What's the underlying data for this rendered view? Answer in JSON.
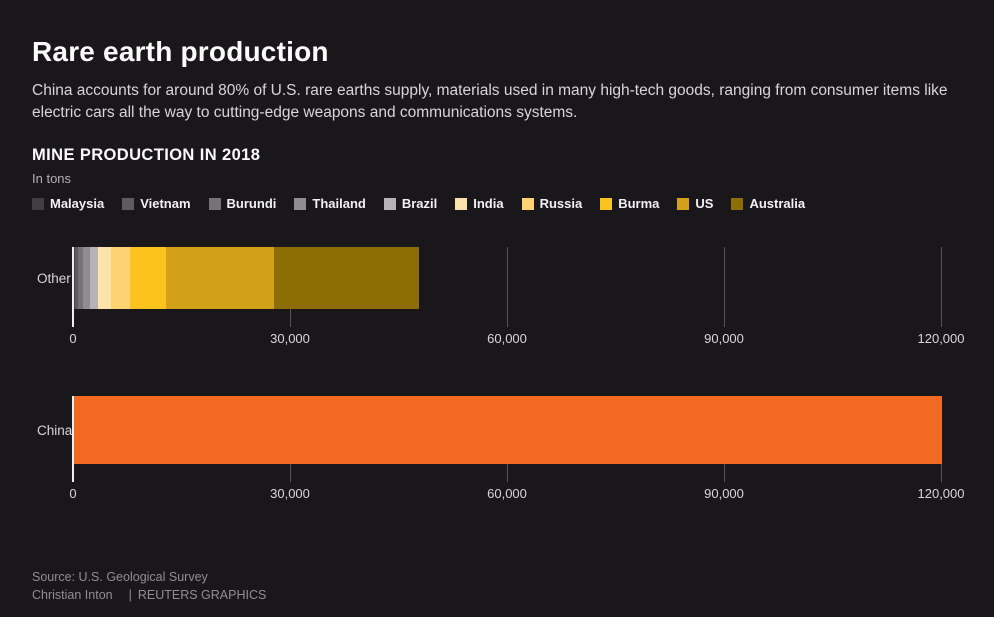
{
  "page": {
    "title": "Rare earth production",
    "subtitle": "China accounts for around 80% of U.S. rare earths supply, materials used in many high-tech goods, ranging from consumer items like electric cars all the way to cutting-edge weapons and communications systems.",
    "source": "Source: U.S. Geological Survey",
    "credit": "Christian Inton",
    "credit_separator": "|",
    "credit_org": "REUTERS GRAPHICS"
  },
  "colors": {
    "background": "#1a171b",
    "gridline": "#55525a",
    "zero_axis": "#efefef",
    "china_orange": "#f26a22",
    "text_primary": "#fdfdfd",
    "text_secondary": "#d9d6d9",
    "text_muted": "#918e92"
  },
  "chart_data": {
    "type": "bar",
    "orientation": "horizontal",
    "stacked": true,
    "title": "MINE PRODUCTION IN 2018",
    "units": "In tons",
    "xlabel": "",
    "ylabel": "",
    "xlim": [
      0,
      120000
    ],
    "x_ticks": [
      0,
      30000,
      60000,
      90000,
      120000
    ],
    "x_tick_labels": [
      "0",
      "30,000",
      "60,000",
      "90,000",
      "120,000"
    ],
    "grid": true,
    "legend_position": "top",
    "legend": [
      {
        "name": "Malaysia",
        "color": "#413e44"
      },
      {
        "name": "Vietnam",
        "color": "#5d5a61"
      },
      {
        "name": "Burundi",
        "color": "#757278"
      },
      {
        "name": "Thailand",
        "color": "#8f8c92"
      },
      {
        "name": "Brazil",
        "color": "#b5b3b6"
      },
      {
        "name": "India",
        "color": "#fce3a9"
      },
      {
        "name": "Russia",
        "color": "#fcd273"
      },
      {
        "name": "Burma",
        "color": "#fcc31d"
      },
      {
        "name": "US",
        "color": "#d2a117"
      },
      {
        "name": "Australia",
        "color": "#8d6e04"
      }
    ],
    "rows": [
      {
        "label": "Other",
        "segments": [
          {
            "name": "Malaysia",
            "value": 200,
            "color": "#413e44"
          },
          {
            "name": "Vietnam",
            "value": 400,
            "color": "#5d5a61"
          },
          {
            "name": "Burundi",
            "value": 600,
            "color": "#757278"
          },
          {
            "name": "Thailand",
            "value": 1000,
            "color": "#8f8c92"
          },
          {
            "name": "Brazil",
            "value": 1100,
            "color": "#b5b3b6"
          },
          {
            "name": "India",
            "value": 1800,
            "color": "#fce3a9"
          },
          {
            "name": "Russia",
            "value": 2600,
            "color": "#fcd273"
          },
          {
            "name": "Burma",
            "value": 5000,
            "color": "#fcc31d"
          },
          {
            "name": "US",
            "value": 15000,
            "color": "#d2a117"
          },
          {
            "name": "Australia",
            "value": 20000,
            "color": "#8d6e04"
          }
        ]
      },
      {
        "label": "China",
        "segments": [
          {
            "name": "China",
            "value": 120000,
            "color": "#f26a22"
          }
        ]
      }
    ]
  }
}
